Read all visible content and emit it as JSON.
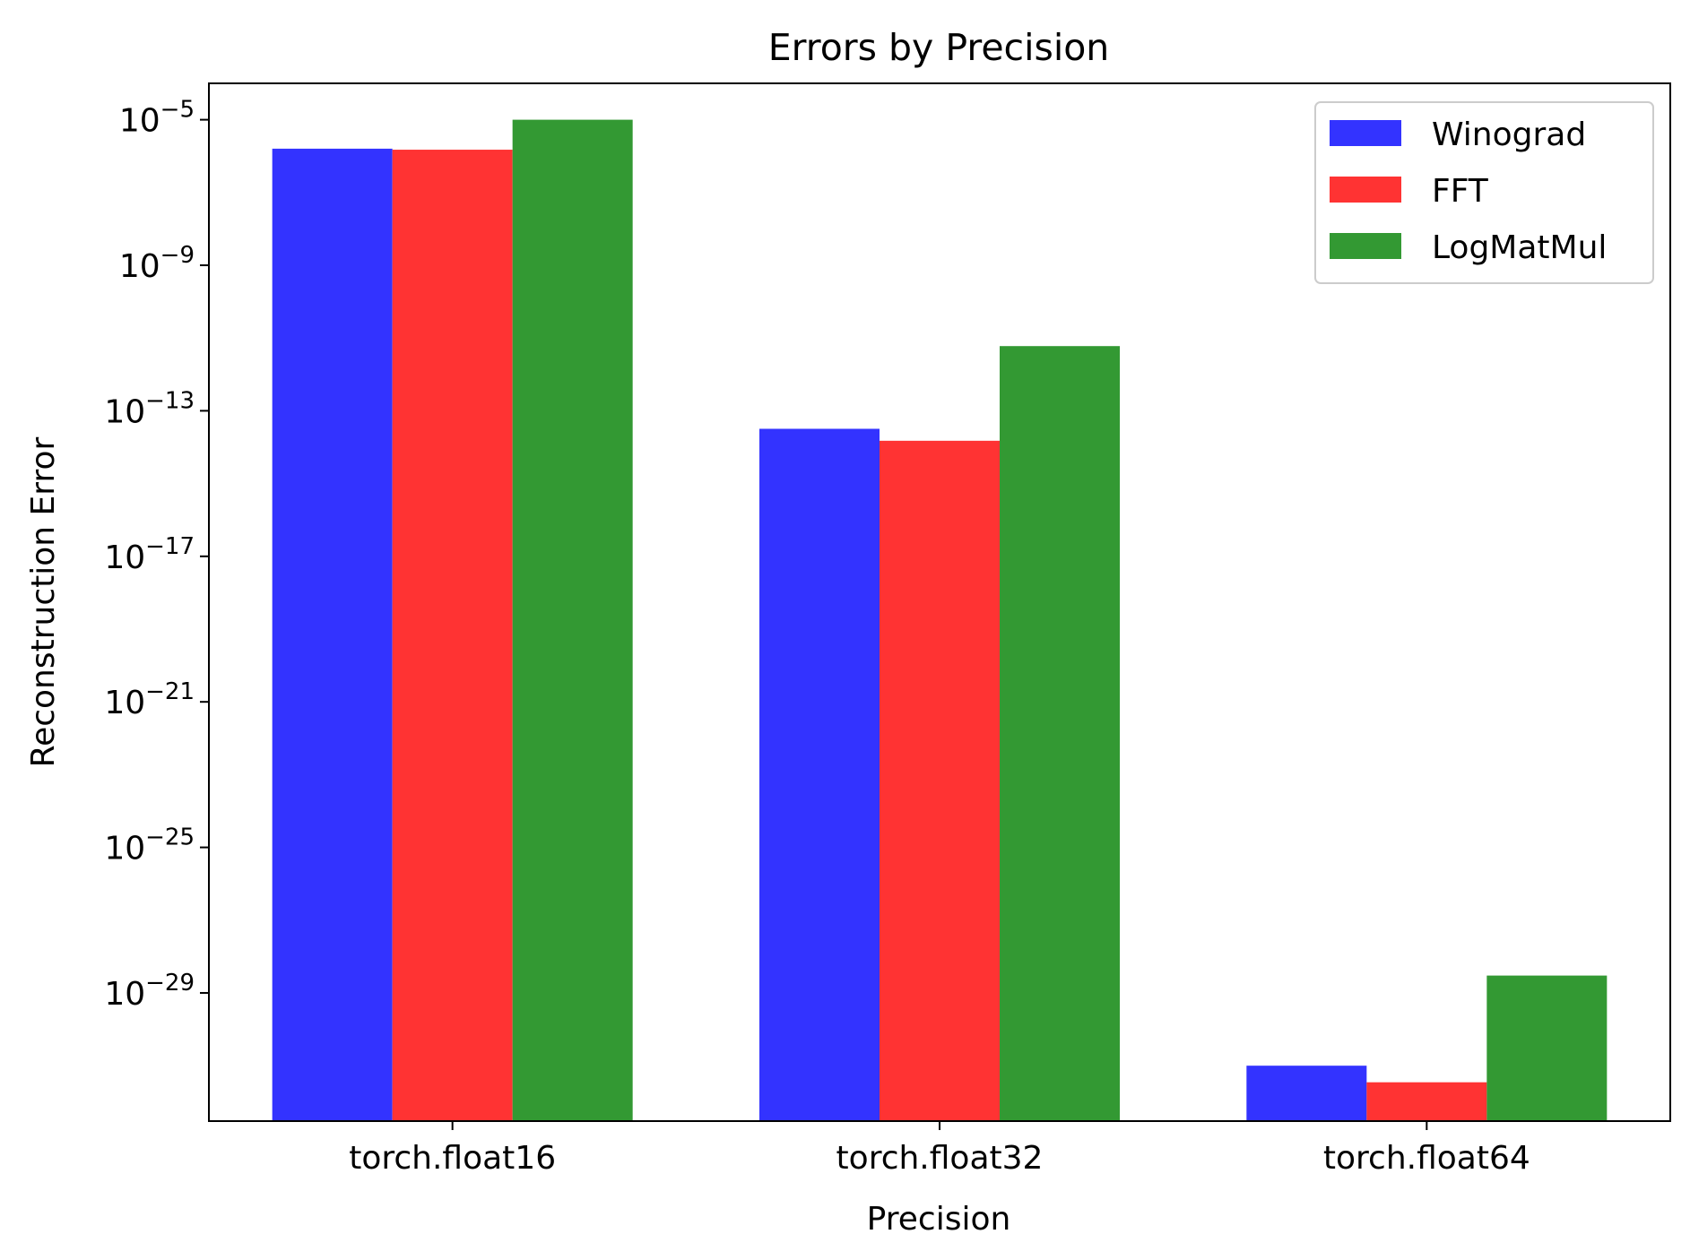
{
  "chart_data": {
    "type": "bar",
    "title": "Errors by Precision",
    "xlabel": "Precision",
    "ylabel": "Reconstruction Error",
    "yscale": "log",
    "ylim": [
      3e-33,
      0.0001
    ],
    "categories": [
      "torch.float16",
      "torch.float32",
      "torch.float64"
    ],
    "series": [
      {
        "name": "Winograd",
        "color": "#3333ff",
        "values": [
          1.6e-06,
          3.2e-14,
          1e-31
        ]
      },
      {
        "name": "FFT",
        "color": "#ff3333",
        "values": [
          1.5e-06,
          1.5e-14,
          3.5e-32
        ]
      },
      {
        "name": "LogMatMul",
        "color": "#339933",
        "values": [
          1e-05,
          6e-12,
          3e-29
        ]
      }
    ],
    "yticks": [
      {
        "base": "10",
        "exp": "−5",
        "value": 1e-05
      },
      {
        "base": "10",
        "exp": "−9",
        "value": 1e-09
      },
      {
        "base": "10",
        "exp": "−13",
        "value": 1e-13
      },
      {
        "base": "10",
        "exp": "−17",
        "value": 1e-17
      },
      {
        "base": "10",
        "exp": "−21",
        "value": 1e-21
      },
      {
        "base": "10",
        "exp": "−25",
        "value": 1e-25
      },
      {
        "base": "10",
        "exp": "−29",
        "value": 1e-29
      }
    ],
    "legend_position": "top-right",
    "grid": false
  }
}
